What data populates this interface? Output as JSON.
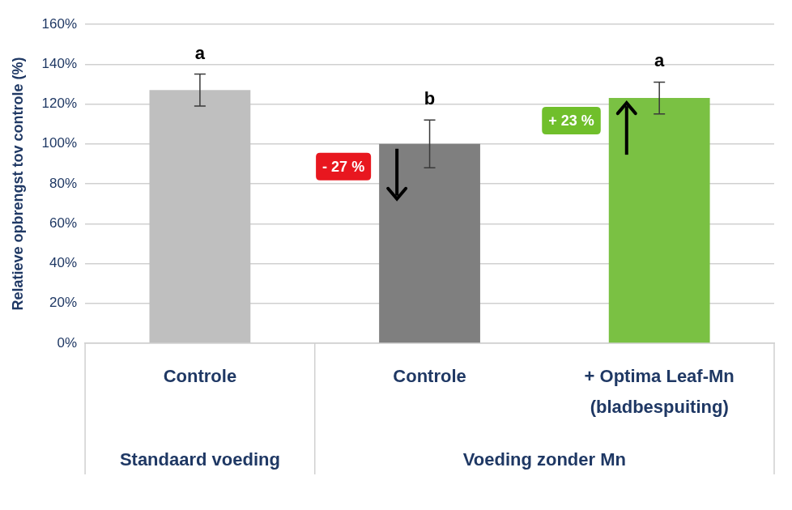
{
  "chart_data": {
    "type": "bar",
    "y_label": "Relatieve opbrengst tov controle (%)",
    "categories": [
      "Controle",
      "Controle",
      [
        "+ Optima Leaf-Mn",
        "(bladbespuiting)"
      ]
    ],
    "category_groups": [
      "Standaard voeding",
      "Voeding zonder Mn",
      "Voeding zonder Mn"
    ],
    "values": [
      127,
      100,
      123
    ],
    "errors": [
      8,
      12,
      8
    ],
    "significance_letters": [
      "a",
      "b",
      "a"
    ],
    "colors": [
      "#bfbfbf",
      "#7f7f7f",
      "#7ac143"
    ],
    "annotations": [
      {
        "category": 1,
        "text": "- 27 %",
        "color": "#e8171f",
        "direction": "down"
      },
      {
        "category": 2,
        "text": "+ 23 %",
        "color": "#70bf2b",
        "direction": "up"
      }
    ],
    "ylim": [
      0,
      160
    ],
    "yticks": [
      {
        "value": 0,
        "label": "0%"
      },
      {
        "value": 20,
        "label": "20%"
      },
      {
        "value": 40,
        "label": "40%"
      },
      {
        "value": 60,
        "label": "60%"
      },
      {
        "value": 80,
        "label": "80%"
      },
      {
        "value": 100,
        "label": "100%"
      },
      {
        "value": 120,
        "label": "120%"
      },
      {
        "value": 140,
        "label": "140%"
      },
      {
        "value": 160,
        "label": "160%"
      }
    ],
    "grid": true
  }
}
